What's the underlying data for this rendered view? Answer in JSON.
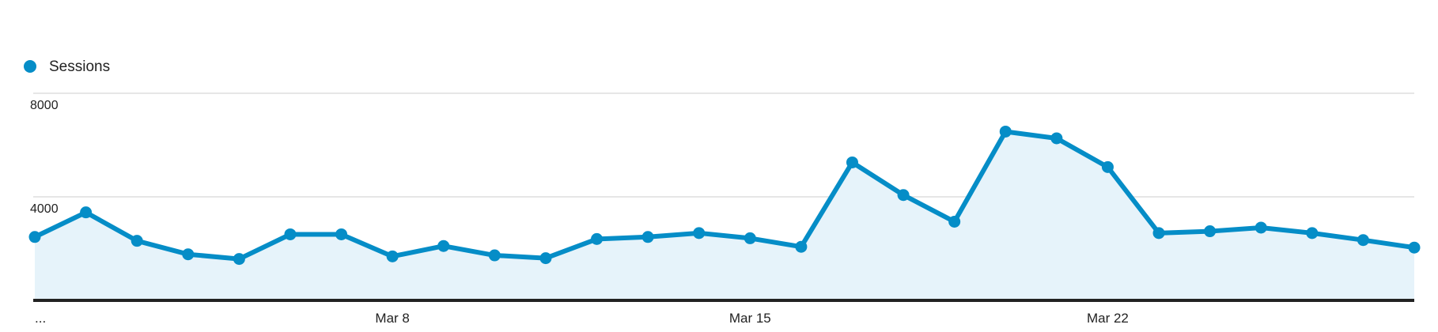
{
  "chart_data": {
    "type": "line",
    "categories": [
      "...",
      null,
      null,
      null,
      null,
      null,
      null,
      "Mar 8",
      null,
      null,
      null,
      null,
      null,
      null,
      "Mar 15",
      null,
      null,
      null,
      null,
      null,
      null,
      "Mar 22",
      null,
      null,
      null,
      null,
      null,
      null
    ],
    "series": [
      {
        "name": "Sessions",
        "color": "#058dc7",
        "values": [
          2450,
          3400,
          2300,
          1780,
          1600,
          2550,
          2550,
          1700,
          2100,
          1740,
          1630,
          2370,
          2450,
          2600,
          2400,
          2070,
          5330,
          4070,
          3040,
          6520,
          6260,
          5150,
          2600,
          2670,
          2810,
          2600,
          2330,
          2040
        ]
      }
    ],
    "ylim": [
      0,
      8000
    ],
    "yticks": [
      4000,
      8000
    ],
    "grid": true,
    "legend": "top-left"
  }
}
